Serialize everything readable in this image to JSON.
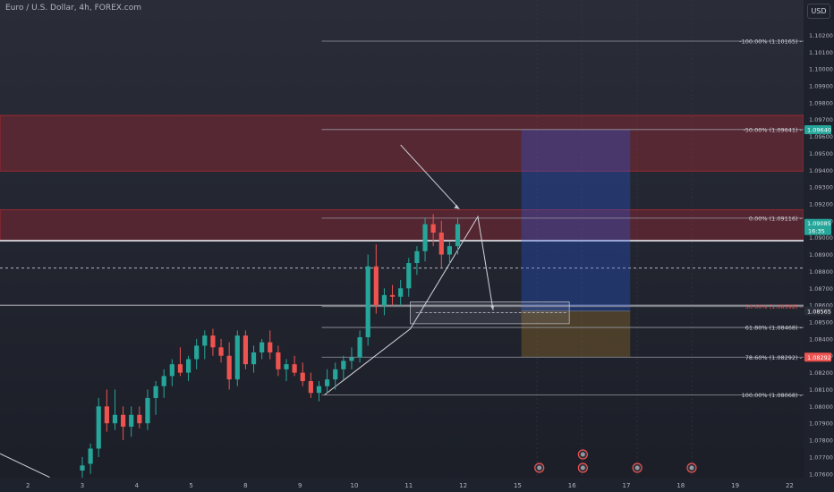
{
  "title": "Euro / U.S. Dollar, 4h, FOREX.com",
  "currency": "USD",
  "colors": {
    "up": "#26a69a",
    "down": "#ef5350",
    "zone_fill": "rgba(178,40,51,0.35)",
    "zone_border": "#b22833",
    "tp_fill": "rgba(41,98,255,0.28)",
    "sl_fill": "rgba(178,130,40,0.30)",
    "fib_line": "#9598a1"
  },
  "chart_data": {
    "type": "candlestick",
    "instrument": "EURUSD",
    "timeframe": "4h",
    "ylim": [
      1.0755,
      1.1035
    ],
    "yticks": [
      1.102,
      1.101,
      1.1,
      1.099,
      1.098,
      1.097,
      1.096,
      1.095,
      1.094,
      1.093,
      1.092,
      1.091,
      1.09,
      1.089,
      1.088,
      1.087,
      1.086,
      1.085,
      1.084,
      1.083,
      1.082,
      1.081,
      1.08,
      1.079,
      1.078,
      1.077,
      1.076
    ],
    "ytick_labels": [
      "1.10200",
      "1.10100",
      "1.10000",
      "1.09900",
      "1.09800",
      "1.09700",
      "1.09600",
      "1.09500",
      "1.09400",
      "1.09300",
      "1.09200",
      "1.09100",
      "1.09000",
      "1.08900",
      "1.08800",
      "1.08700",
      "1.08600",
      "1.08500",
      "1.08400",
      "1.08300",
      "1.08200",
      "1.08100",
      "1.08000",
      "1.07900",
      "1.07800",
      "1.07700",
      "1.07600"
    ],
    "xticks": [
      {
        "bar": -10,
        "label": "2"
      },
      {
        "bar": 0,
        "label": "3"
      },
      {
        "bar": 10,
        "label": "4"
      },
      {
        "bar": 20,
        "label": "5"
      },
      {
        "bar": 30,
        "label": "8"
      },
      {
        "bar": 40,
        "label": "9"
      },
      {
        "bar": 50,
        "label": "10"
      },
      {
        "bar": 60,
        "label": "11"
      },
      {
        "bar": 70,
        "label": "12"
      },
      {
        "bar": 80,
        "label": "15"
      },
      {
        "bar": 90,
        "label": "16"
      },
      {
        "bar": 100,
        "label": "17"
      },
      {
        "bar": 110,
        "label": "18"
      },
      {
        "bar": 120,
        "label": "19"
      },
      {
        "bar": 130,
        "label": "22"
      }
    ],
    "candles": [
      [
        1.0762,
        1.077,
        1.0755,
        1.0765
      ],
      [
        1.0766,
        1.0778,
        1.076,
        1.0775
      ],
      [
        1.0775,
        1.0805,
        1.077,
        1.08
      ],
      [
        1.08,
        1.081,
        1.0785,
        1.079
      ],
      [
        1.079,
        1.081,
        1.0786,
        1.0795
      ],
      [
        1.0795,
        1.08,
        1.078,
        1.0788
      ],
      [
        1.0788,
        1.08,
        1.0782,
        1.0795
      ],
      [
        1.0795,
        1.08,
        1.0787,
        1.079
      ],
      [
        1.079,
        1.081,
        1.0786,
        1.0805
      ],
      [
        1.0805,
        1.0815,
        1.0795,
        1.0812
      ],
      [
        1.0812,
        1.0822,
        1.0805,
        1.0818
      ],
      [
        1.0818,
        1.0828,
        1.0812,
        1.0825
      ],
      [
        1.0825,
        1.0835,
        1.0818,
        1.082
      ],
      [
        1.082,
        1.083,
        1.0815,
        1.0828
      ],
      [
        1.0828,
        1.084,
        1.0822,
        1.0836
      ],
      [
        1.0836,
        1.0845,
        1.0828,
        1.0842
      ],
      [
        1.0842,
        1.0846,
        1.083,
        1.0835
      ],
      [
        1.0835,
        1.084,
        1.0826,
        1.083
      ],
      [
        1.083,
        1.0838,
        1.081,
        1.0816
      ],
      [
        1.0816,
        1.0845,
        1.0812,
        1.0842
      ],
      [
        1.0842,
        1.0845,
        1.0822,
        1.0825
      ],
      [
        1.0825,
        1.0836,
        1.082,
        1.0832
      ],
      [
        1.0832,
        1.084,
        1.0828,
        1.0838
      ],
      [
        1.0838,
        1.0845,
        1.0828,
        1.0832
      ],
      [
        1.0832,
        1.0836,
        1.0818,
        1.0822
      ],
      [
        1.0822,
        1.0828,
        1.0815,
        1.0825
      ],
      [
        1.0825,
        1.083,
        1.0818,
        1.082
      ],
      [
        1.082,
        1.0826,
        1.0812,
        1.0815
      ],
      [
        1.0815,
        1.082,
        1.0805,
        1.0808
      ],
      [
        1.0808,
        1.0815,
        1.0803,
        1.0812
      ],
      [
        1.0812,
        1.0822,
        1.0808,
        1.0816
      ],
      [
        1.0816,
        1.0826,
        1.081,
        1.0822
      ],
      [
        1.0822,
        1.083,
        1.0816,
        1.0827
      ],
      [
        1.0827,
        1.0835,
        1.0822,
        1.0829
      ],
      [
        1.0829,
        1.0845,
        1.0826,
        1.0841
      ],
      [
        1.0841,
        1.089,
        1.0836,
        1.0883
      ],
      [
        1.0883,
        1.0896,
        1.0855,
        1.086
      ],
      [
        1.086,
        1.087,
        1.0854,
        1.0866
      ],
      [
        1.0866,
        1.0872,
        1.086,
        1.0865
      ],
      [
        1.0865,
        1.0875,
        1.086,
        1.087
      ],
      [
        1.087,
        1.0888,
        1.0865,
        1.0885
      ],
      [
        1.0885,
        1.0895,
        1.0878,
        1.0892
      ],
      [
        1.0892,
        1.0912,
        1.0886,
        1.0908
      ],
      [
        1.0908,
        1.0914,
        1.0895,
        1.0903
      ],
      [
        1.0903,
        1.091,
        1.0882,
        1.089
      ],
      [
        1.089,
        1.0898,
        1.0884,
        1.0895
      ],
      [
        1.0895,
        1.0912,
        1.089,
        1.0908
      ]
    ],
    "candle_start_bar": 0,
    "candle_bar_step": 1.5,
    "current_price": 1.0908,
    "fib_levels": [
      {
        "label": "-100.00% (1.10165)",
        "price": 1.10165
      },
      {
        "label": "-50.00% (1.09641)",
        "price": 1.09641
      },
      {
        "label": "0.00% (1.09116)",
        "price": 1.09116
      },
      {
        "label": "50.00% (1.08592)",
        "price": 1.08592
      },
      {
        "label": "61.80% (1.08468)",
        "price": 1.08468
      },
      {
        "label": "78.60% (1.08292)",
        "price": 1.08292
      },
      {
        "label": "100.00% (1.08068)",
        "price": 1.08068
      }
    ],
    "zones": [
      {
        "from": 1.09725,
        "to": 1.09395
      },
      {
        "from": 1.09165,
        "to": 1.08985
      }
    ],
    "horizontal_lines": [
      1.086,
      1.08985
    ],
    "dashed_level": 1.0882,
    "position": {
      "entry": 1.08565,
      "target": 1.0964,
      "stop": 1.08292
    },
    "price_tags": [
      {
        "price": 1.0964,
        "text": "1.09640",
        "bg": "#26a69a"
      },
      {
        "price": 1.09085,
        "text": "1.09085",
        "bg": "#26a69a",
        "sub": "16:35"
      },
      {
        "price": 1.08565,
        "text": "1.08565",
        "bg": "#2a2e39"
      },
      {
        "price": 1.08292,
        "text": "1.08292",
        "bg": "#ef5350"
      }
    ],
    "events": [
      {
        "bar": 84,
        "row": 0
      },
      {
        "bar": 92,
        "row": 0
      },
      {
        "bar": 92,
        "row": 1
      },
      {
        "bar": 102,
        "row": 0
      },
      {
        "bar": 112,
        "row": 0
      }
    ]
  }
}
